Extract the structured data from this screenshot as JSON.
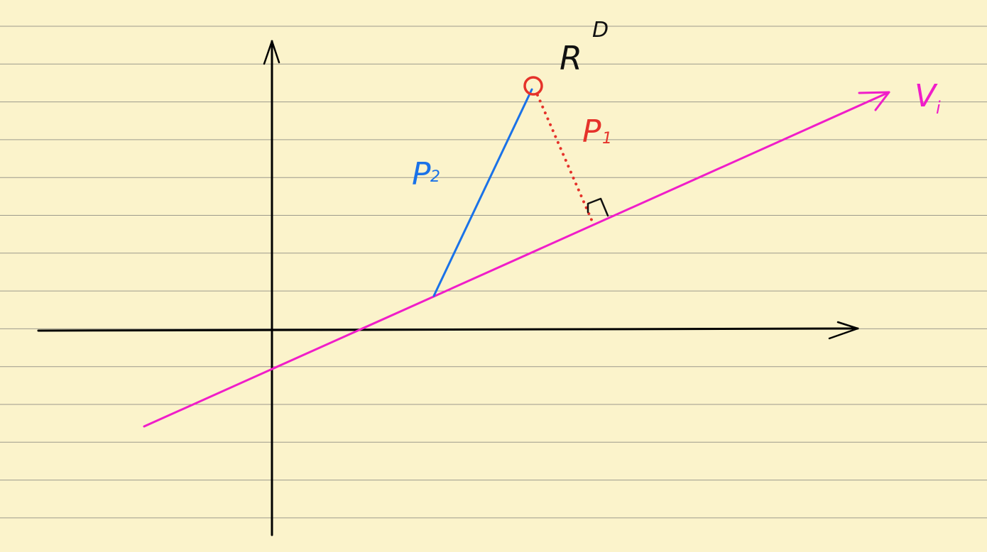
{
  "colors": {
    "paper": "#fbf3cb",
    "rule": "#9c9a8c",
    "axis": "#000000",
    "line_v": "#f01dc9",
    "segment_p2": "#1a72e8",
    "segment_p1": "#e5322a",
    "point": "#e5322a",
    "text_dark": "#111111"
  },
  "labels": {
    "space": "R",
    "space_exponent": "D",
    "line": "V",
    "line_subscript": "i",
    "p1": "P",
    "p1_subscript": "1",
    "p2": "P",
    "p2_subscript": "2"
  },
  "icons": {
    "point_marker": "circle-icon",
    "right_angle": "right-angle-icon",
    "arrow_head": "arrowhead-icon"
  }
}
